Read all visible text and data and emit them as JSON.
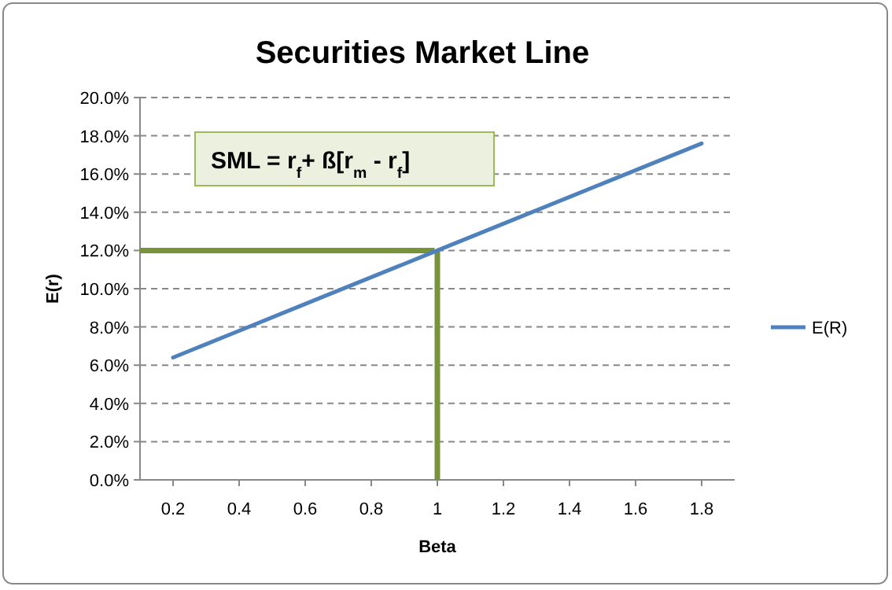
{
  "chart_data": {
    "type": "line",
    "title": "Securities Market Line",
    "xlabel": "Beta",
    "ylabel": "E(r)",
    "x": [
      0.2,
      0.4,
      0.6,
      0.8,
      1,
      1.2,
      1.4,
      1.6,
      1.8
    ],
    "series": [
      {
        "name": "E(R)",
        "color": "#4f81bd",
        "values": [
          6.4,
          7.8,
          9.2,
          10.6,
          12,
          13.4,
          14.8,
          16.2,
          17.6
        ]
      }
    ],
    "xlim": [
      0.1,
      1.9
    ],
    "xticks": [
      0.2,
      0.4,
      0.6,
      0.8,
      1,
      1.2,
      1.4,
      1.6,
      1.8
    ],
    "ylim": [
      0,
      20
    ],
    "yticks": [
      {
        "value": 0,
        "label": "0.0%"
      },
      {
        "value": 2,
        "label": "2.0%"
      },
      {
        "value": 4,
        "label": "4.0%"
      },
      {
        "value": 6,
        "label": "6.0%"
      },
      {
        "value": 8,
        "label": "8.0%"
      },
      {
        "value": 10,
        "label": "10.0%"
      },
      {
        "value": 12,
        "label": "12.0%"
      },
      {
        "value": 14,
        "label": "14.0%"
      },
      {
        "value": 16,
        "label": "16.0%"
      },
      {
        "value": 18,
        "label": "18.0%"
      },
      {
        "value": 20,
        "label": "20.0%"
      }
    ],
    "grid": "y",
    "legend": "right",
    "marker": "none",
    "line_style": "solid",
    "ref_lines": [
      {
        "axis": "y",
        "value": 12,
        "color": "#77933c"
      },
      {
        "axis": "x",
        "value": 1,
        "color": "#77933c"
      }
    ],
    "annotations": [
      "SML = r$_{f}$+ ß[r$_{m}$ - r$_{f}$]"
    ]
  }
}
